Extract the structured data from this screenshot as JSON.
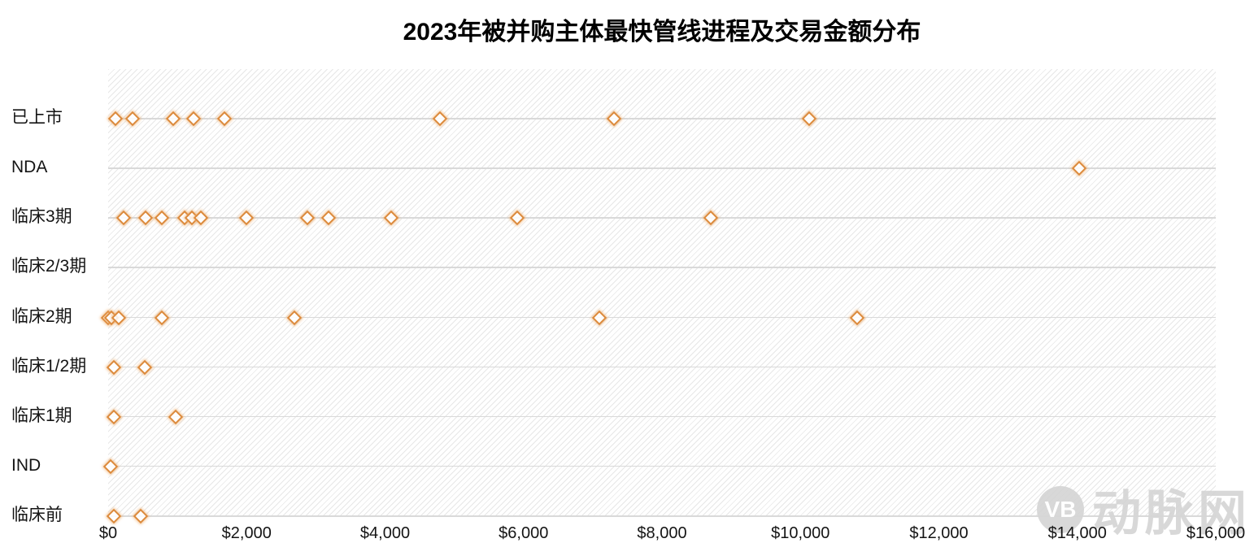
{
  "chart_data": {
    "type": "scatter",
    "title": "2023年被并购主体最快管线进程及交易金额分布",
    "legend": "none",
    "background_style": "diagonal-hatch",
    "grid": "horizontal",
    "marker": {
      "shape": "diamond-outline",
      "color": "#dc8a3c"
    },
    "x_axis": {
      "min": 0,
      "max": 16000,
      "tick_step": 2000,
      "tick_labels": [
        "$0",
        "$2,000",
        "$4,000",
        "$6,000",
        "$8,000",
        "$10,000",
        "$12,000",
        "$14,000",
        "$16,000"
      ]
    },
    "y_axis": {
      "categories": [
        "已上市",
        "NDA",
        "临床3期",
        "临床2/3期",
        "临床2期",
        "临床1/2期",
        "临床1期",
        "IND",
        "临床前"
      ]
    },
    "rows": [
      {
        "label": "已上市",
        "values": [
          110,
          350,
          940,
          1230,
          1680,
          4790,
          7310,
          10130
        ]
      },
      {
        "label": "NDA",
        "values": [
          14030
        ]
      },
      {
        "label": "临床3期",
        "values": [
          220,
          540,
          780,
          1100,
          1210,
          1340,
          2000,
          2880,
          3180,
          4090,
          5910,
          8700
        ]
      },
      {
        "label": "临床2/3期",
        "values": []
      },
      {
        "label": "临床2期",
        "values": [
          0,
          50,
          150,
          780,
          2690,
          7100,
          10820
        ]
      },
      {
        "label": "临床1/2期",
        "values": [
          80,
          530
        ]
      },
      {
        "label": "临床1期",
        "values": [
          80,
          980
        ]
      },
      {
        "label": "IND",
        "values": [
          30
        ]
      },
      {
        "label": "临床前",
        "values": [
          80,
          470
        ]
      }
    ]
  },
  "watermark": {
    "logo": "VB",
    "text": "动脉网"
  }
}
